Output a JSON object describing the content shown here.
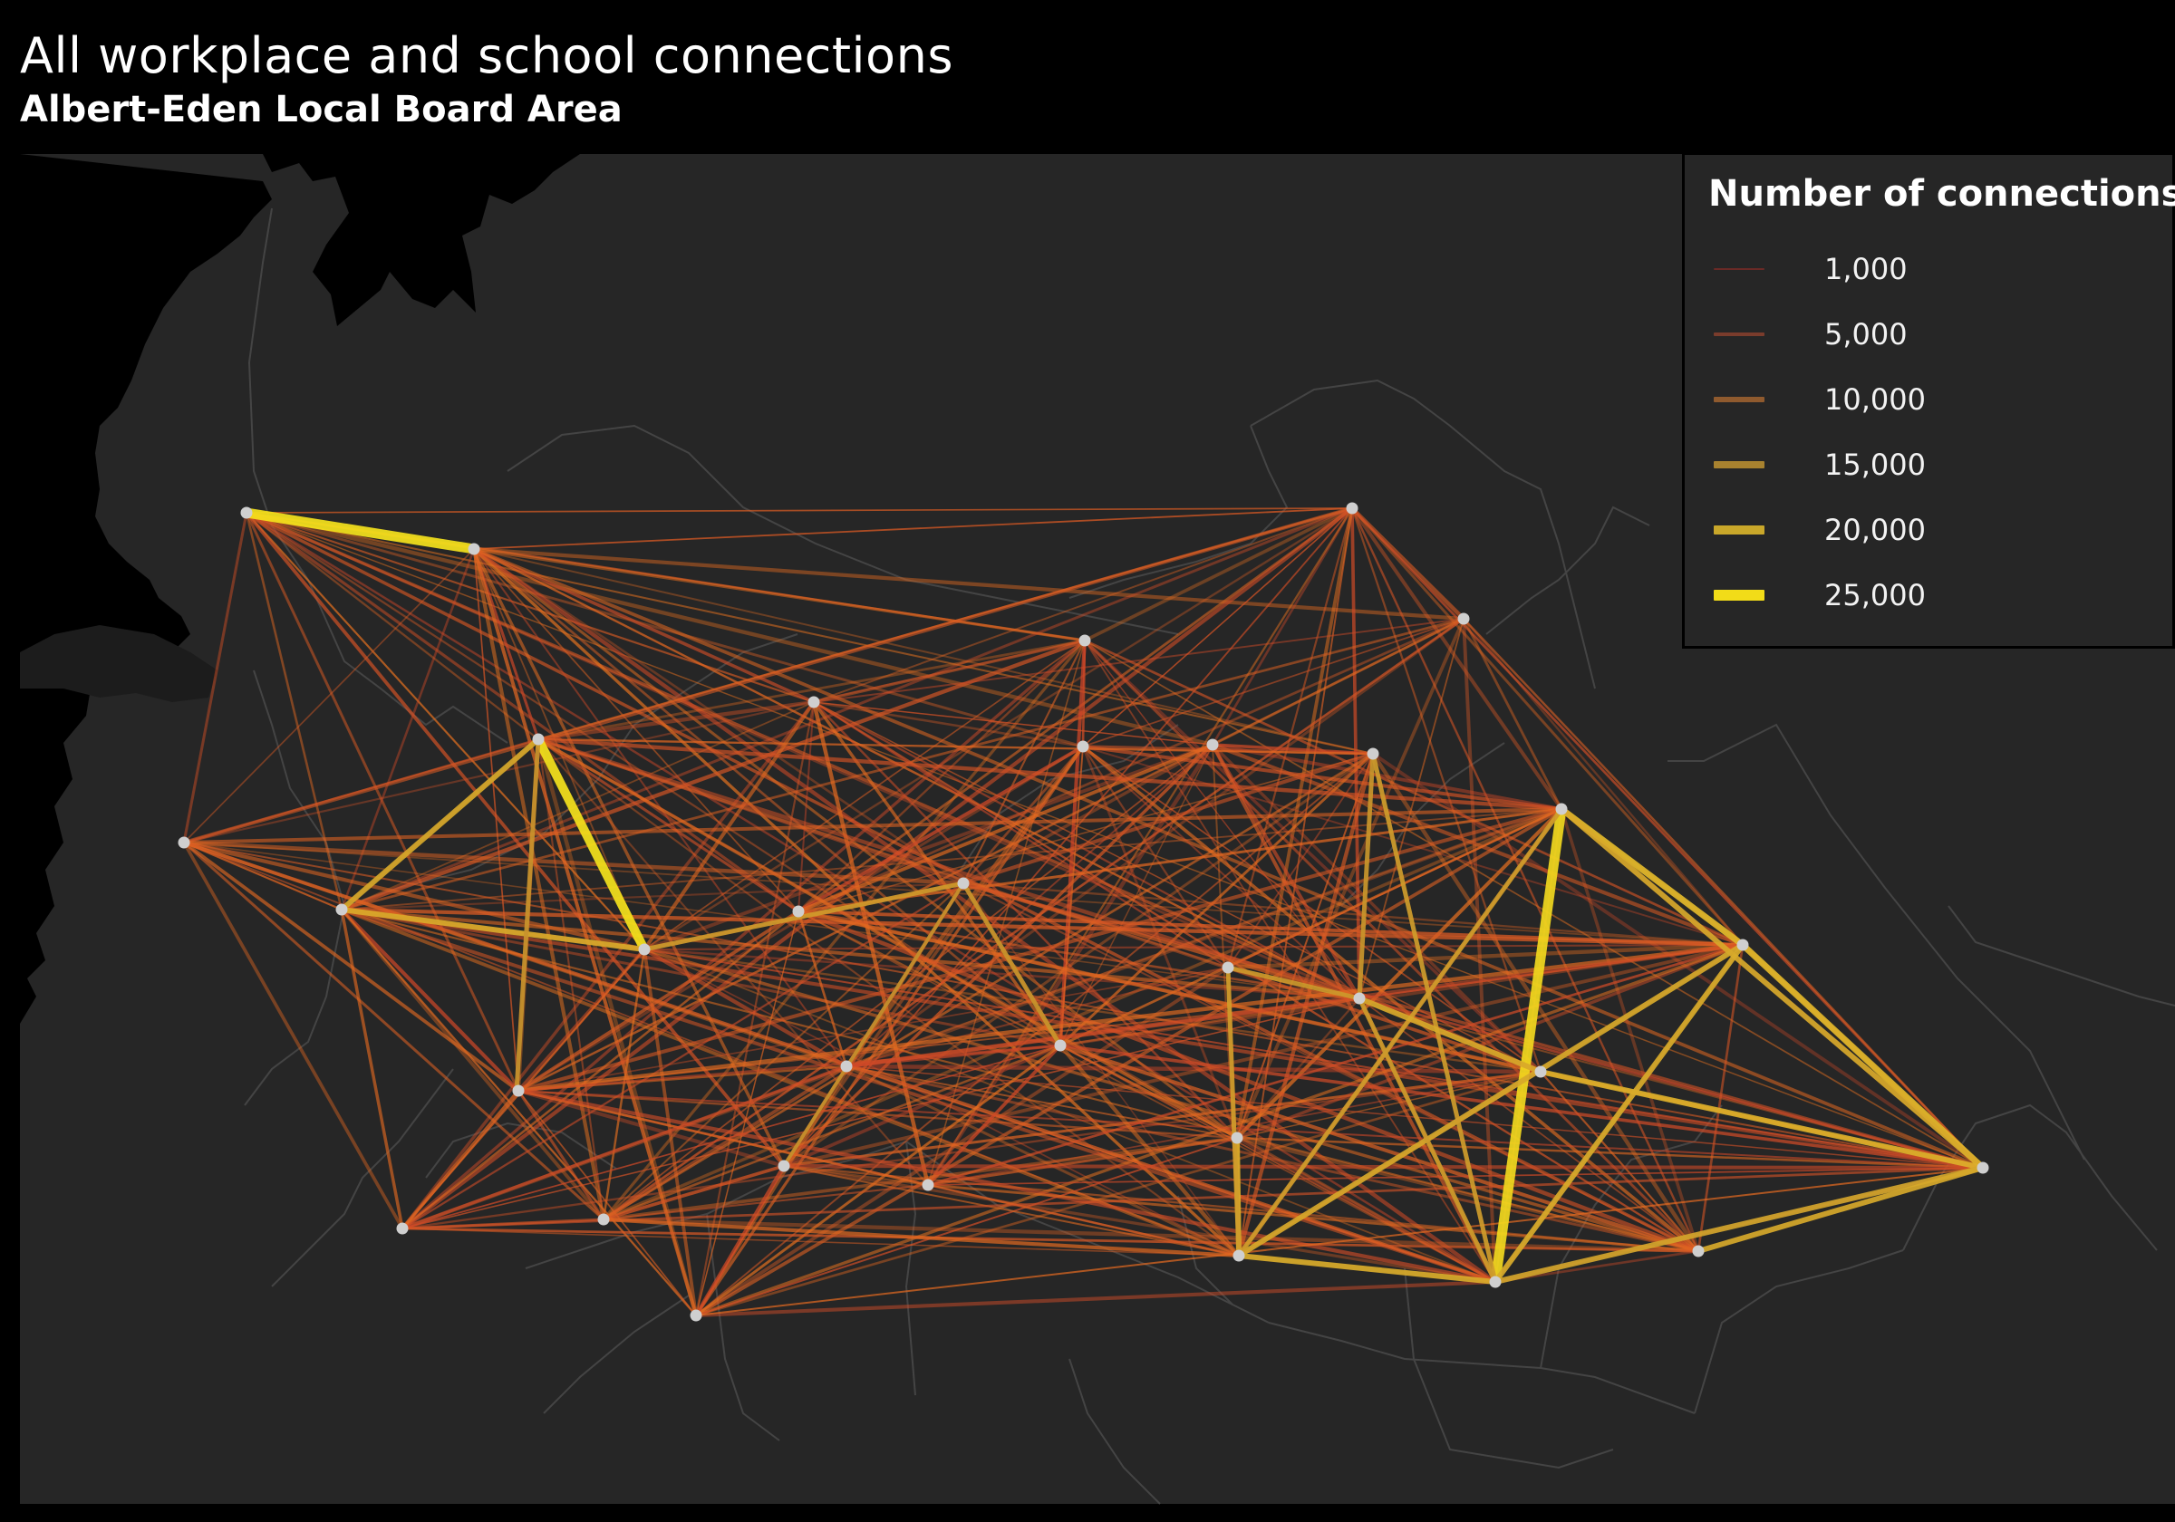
{
  "title": "All workplace and school connections",
  "subtitle": "Albert-Eden Local Board Area",
  "colors": {
    "background": "#000000",
    "land": "#262626",
    "boundary": "#4a4a4a",
    "node": "#cfcfcf",
    "low": "#c0392b",
    "mid": "#e8731f",
    "high": "#f4e21c"
  },
  "legend": {
    "title": "Number of connections",
    "items": [
      {
        "label": "1,000",
        "value": 1000,
        "color": "#6a2a26"
      },
      {
        "label": "5,000",
        "value": 5000,
        "color": "#7a3c2c"
      },
      {
        "label": "10,000",
        "value": 10000,
        "color": "#8f5a2e"
      },
      {
        "label": "15,000",
        "value": 15000,
        "color": "#a8822f"
      },
      {
        "label": "20,000",
        "value": 20000,
        "color": "#c9a72a"
      },
      {
        "label": "25,000",
        "value": 25000,
        "color": "#f2dc18"
      }
    ]
  }
}
